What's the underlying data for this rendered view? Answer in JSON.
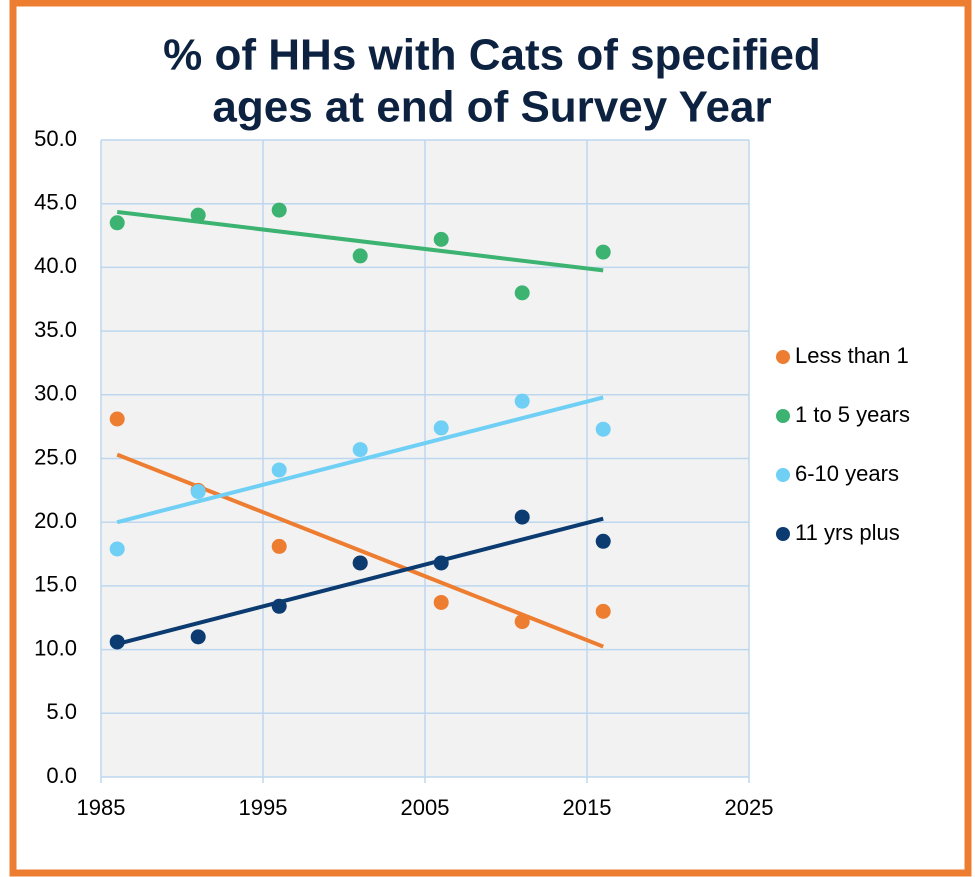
{
  "chart_data": {
    "type": "scatter",
    "title": [
      "% of HHs with Cats of specified",
      "ages at end of Survey Year"
    ],
    "trendline": true,
    "grid": true,
    "legend": "right",
    "series": [
      {
        "name": "Less than 1",
        "color": "#ed7d31",
        "x": [
          1986,
          1991,
          1996,
          2001,
          2006,
          2011,
          2016
        ],
        "values": [
          28.1,
          22.5,
          18.1,
          16.8,
          13.7,
          12.2,
          13.0
        ]
      },
      {
        "name": "1 to 5 years",
        "color": "#3cb371",
        "x": [
          1986,
          1991,
          1996,
          2001,
          2006,
          2011,
          2016
        ],
        "values": [
          43.5,
          44.1,
          44.5,
          40.9,
          42.2,
          38.0,
          41.2
        ]
      },
      {
        "name": "6-10 years",
        "color": "#6fcff5",
        "x": [
          1986,
          1991,
          1996,
          2001,
          2006,
          2011,
          2016
        ],
        "values": [
          17.9,
          22.4,
          24.1,
          25.7,
          27.4,
          29.5,
          27.3
        ]
      },
      {
        "name": "11 yrs plus",
        "color": "#0b3b70",
        "x": [
          1986,
          1991,
          1996,
          2001,
          2006,
          2011,
          2016
        ],
        "values": [
          10.6,
          11.0,
          13.4,
          16.8,
          16.8,
          20.4,
          18.5
        ]
      }
    ],
    "xlim": [
      1985,
      2025
    ],
    "xticks": [
      1985,
      1995,
      2005,
      2015,
      2025
    ],
    "ylim": [
      0,
      50
    ],
    "yticks": [
      {
        "value": 0,
        "label": "0.0"
      },
      {
        "value": 5,
        "label": "5.0"
      },
      {
        "value": 10,
        "label": "10.0"
      },
      {
        "value": 15,
        "label": "15.0"
      },
      {
        "value": 20,
        "label": "20.0"
      },
      {
        "value": 25,
        "label": "25.0"
      },
      {
        "value": 30,
        "label": "30.0"
      },
      {
        "value": 35,
        "label": "35.0"
      },
      {
        "value": 40,
        "label": "40.0"
      },
      {
        "value": 45,
        "label": "45.0"
      },
      {
        "value": 50,
        "label": "50.0"
      }
    ]
  }
}
